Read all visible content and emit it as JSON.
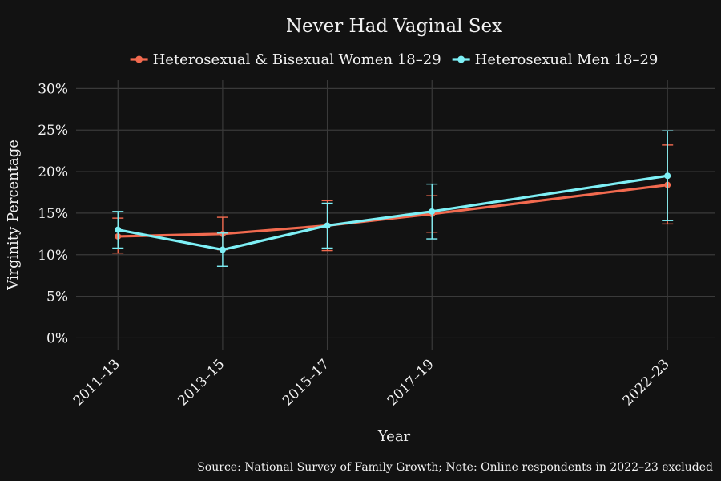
{
  "chart_data": {
    "type": "line",
    "title": "Never Had Vaginal Sex",
    "xlabel": "Year",
    "ylabel": "Virginity Percentage",
    "caption": "Source: National Survey of Family Growth; Note: Online respondents in 2022–23 excluded",
    "categories": [
      "2011–13",
      "2013–15",
      "2015–17",
      "2017–19",
      "2022–23"
    ],
    "x_positions": [
      2012,
      2014,
      2016,
      2018,
      2022.5
    ],
    "y_ticks": [
      0,
      5,
      10,
      15,
      20,
      25,
      30
    ],
    "y_tick_labels": [
      "0%",
      "5%",
      "10%",
      "15%",
      "20%",
      "25%",
      "30%"
    ],
    "ylim": [
      -1.5,
      31
    ],
    "grid": true,
    "legend_position": "top",
    "series": [
      {
        "name": "Heterosexual & Bisexual Women 18–29",
        "color": "#f26a4f",
        "values": [
          12.2,
          12.5,
          13.5,
          14.9,
          18.4
        ],
        "lower": [
          10.2,
          10.6,
          10.5,
          12.7,
          13.7
        ],
        "upper": [
          14.4,
          14.5,
          16.5,
          17.1,
          23.2
        ]
      },
      {
        "name": "Heterosexual Men 18–29",
        "color": "#7ef0f6",
        "values": [
          13.0,
          10.6,
          13.5,
          15.2,
          19.5
        ],
        "lower": [
          10.8,
          8.6,
          10.8,
          11.9,
          14.1
        ],
        "upper": [
          15.2,
          12.6,
          16.2,
          18.5,
          24.9
        ]
      }
    ]
  }
}
